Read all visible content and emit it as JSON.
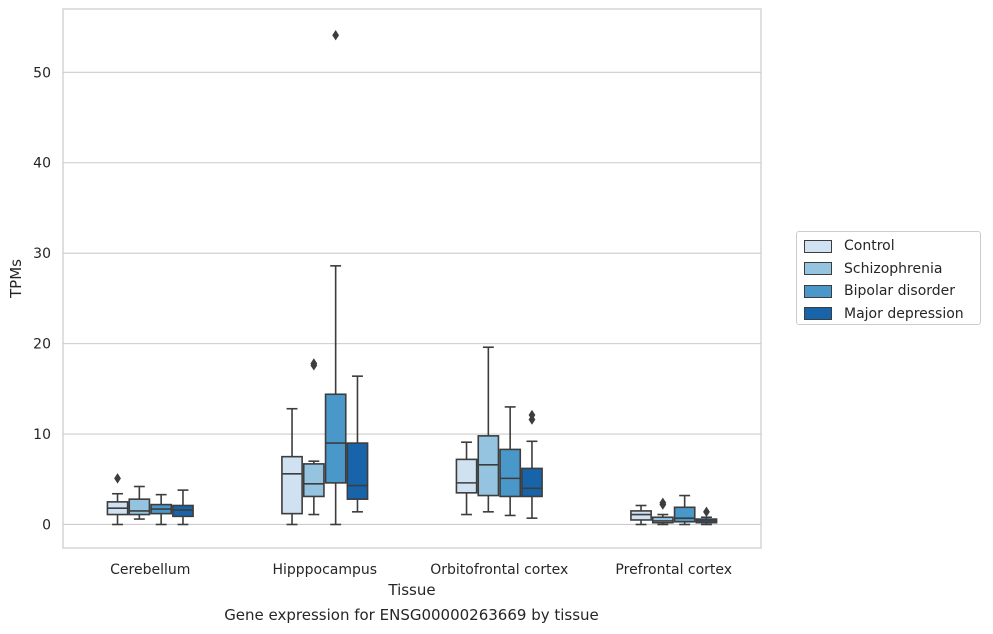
{
  "caption": "Gene expression for ENSG00000263669 by tissue",
  "chart_data": {
    "type": "box",
    "xlabel": "Tissue",
    "ylabel": "TPMs",
    "ylim": [
      -2.6,
      57
    ],
    "yticks": [
      0,
      10,
      20,
      30,
      40,
      50
    ],
    "grid": "horizontal",
    "legend_position": "right",
    "categories": [
      "Cerebellum",
      "Hipppocampus",
      "Orbitofrontal cortex",
      "Prefrontal cortex"
    ],
    "series": [
      {
        "name": "Control",
        "color": "#d0e1f2",
        "boxes": [
          {
            "whisker_low": 0.0,
            "q1": 1.1,
            "median": 1.8,
            "q3": 2.5,
            "whisker_high": 3.4,
            "outliers": [
              5.1
            ]
          },
          {
            "whisker_low": 0.0,
            "q1": 1.2,
            "median": 5.6,
            "q3": 7.5,
            "whisker_high": 12.8,
            "outliers": []
          },
          {
            "whisker_low": 1.1,
            "q1": 3.5,
            "median": 4.6,
            "q3": 7.2,
            "whisker_high": 9.1,
            "outliers": []
          },
          {
            "whisker_low": 0.0,
            "q1": 0.5,
            "median": 1.1,
            "q3": 1.5,
            "whisker_high": 2.1,
            "outliers": []
          }
        ]
      },
      {
        "name": "Schizophrenia",
        "color": "#94c4df",
        "boxes": [
          {
            "whisker_low": 0.6,
            "q1": 1.1,
            "median": 1.5,
            "q3": 2.8,
            "whisker_high": 4.2,
            "outliers": []
          },
          {
            "whisker_low": 1.1,
            "q1": 3.1,
            "median": 4.5,
            "q3": 6.7,
            "whisker_high": 7.0,
            "outliers": [
              17.6,
              17.8
            ]
          },
          {
            "whisker_low": 1.4,
            "q1": 3.2,
            "median": 6.6,
            "q3": 9.8,
            "whisker_high": 19.6,
            "outliers": []
          },
          {
            "whisker_low": 0.0,
            "q1": 0.2,
            "median": 0.4,
            "q3": 0.8,
            "whisker_high": 1.1,
            "outliers": [
              2.2,
              2.4
            ]
          }
        ]
      },
      {
        "name": "Bipolar disorder",
        "color": "#4a98c9",
        "boxes": [
          {
            "whisker_low": 0.0,
            "q1": 1.2,
            "median": 1.7,
            "q3": 2.2,
            "whisker_high": 3.3,
            "outliers": []
          },
          {
            "whisker_low": 0.0,
            "q1": 4.6,
            "median": 9.0,
            "q3": 14.4,
            "whisker_high": 28.6,
            "outliers": [
              54.1
            ]
          },
          {
            "whisker_low": 1.0,
            "q1": 3.1,
            "median": 5.1,
            "q3": 8.3,
            "whisker_high": 13.0,
            "outliers": []
          },
          {
            "whisker_low": 0.0,
            "q1": 0.3,
            "median": 0.7,
            "q3": 1.9,
            "whisker_high": 3.2,
            "outliers": []
          }
        ]
      },
      {
        "name": "Major depression",
        "color": "#1764ab",
        "boxes": [
          {
            "whisker_low": 0.0,
            "q1": 0.9,
            "median": 1.6,
            "q3": 2.1,
            "whisker_high": 3.8,
            "outliers": []
          },
          {
            "whisker_low": 1.4,
            "q1": 2.8,
            "median": 4.3,
            "q3": 9.0,
            "whisker_high": 16.4,
            "outliers": []
          },
          {
            "whisker_low": 0.7,
            "q1": 3.1,
            "median": 4.0,
            "q3": 6.2,
            "whisker_high": 9.2,
            "outliers": [
              11.6,
              12.1
            ]
          },
          {
            "whisker_low": 0.0,
            "q1": 0.2,
            "median": 0.4,
            "q3": 0.6,
            "whisker_high": 0.8,
            "outliers": [
              1.4
            ]
          }
        ]
      }
    ]
  }
}
